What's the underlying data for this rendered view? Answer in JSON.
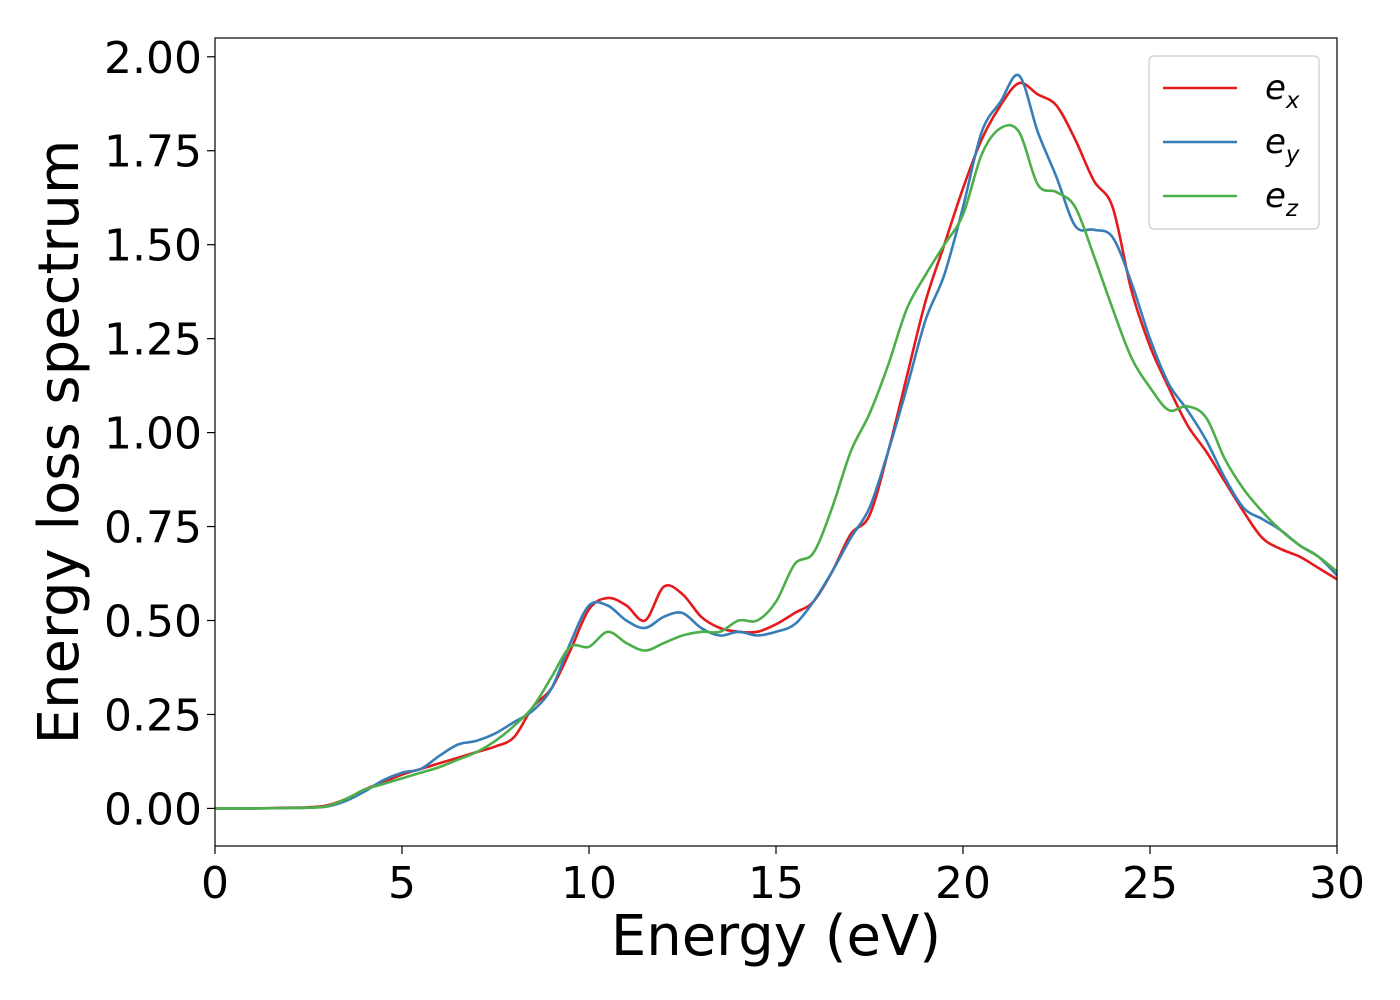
{
  "chart_data": {
    "type": "line",
    "title": "",
    "xlabel": "Energy (eV)",
    "ylabel": "Energy loss spectrum",
    "xlim": [
      0,
      30
    ],
    "ylim": [
      -0.1,
      2.05
    ],
    "x_ticks": [
      "0",
      "5",
      "10",
      "15",
      "20",
      "25",
      "30"
    ],
    "y_ticks": [
      "0.00",
      "0.25",
      "0.50",
      "0.75",
      "1.00",
      "1.25",
      "1.50",
      "1.75",
      "2.00"
    ],
    "grid": false,
    "legend_position": "top-right",
    "x": [
      0,
      1,
      2,
      2.5,
      3,
      3.5,
      4,
      4.5,
      5,
      5.5,
      6,
      6.5,
      7,
      7.5,
      8,
      8.5,
      9,
      9.5,
      10,
      10.5,
      11,
      11.5,
      12,
      12.5,
      13,
      13.5,
      14,
      14.5,
      15,
      15.5,
      16,
      16.5,
      17,
      17.5,
      18,
      18.5,
      19,
      19.5,
      20,
      20.5,
      21,
      21.5,
      22,
      22.5,
      23,
      23.5,
      24,
      24.5,
      25,
      25.5,
      26,
      26.5,
      27,
      27.5,
      28,
      28.5,
      29,
      29.5,
      30
    ],
    "series": [
      {
        "name": "e",
        "subscript": "x",
        "color": "#e41a1c",
        "values": [
          0,
          0,
          0.002,
          0.003,
          0.008,
          0.025,
          0.05,
          0.07,
          0.09,
          0.105,
          0.12,
          0.135,
          0.15,
          0.165,
          0.19,
          0.27,
          0.32,
          0.42,
          0.53,
          0.56,
          0.54,
          0.5,
          0.59,
          0.57,
          0.51,
          0.48,
          0.47,
          0.47,
          0.49,
          0.52,
          0.55,
          0.63,
          0.73,
          0.78,
          0.95,
          1.15,
          1.35,
          1.5,
          1.65,
          1.78,
          1.87,
          1.93,
          1.9,
          1.87,
          1.78,
          1.67,
          1.6,
          1.38,
          1.23,
          1.12,
          1.02,
          0.95,
          0.87,
          0.79,
          0.72,
          0.69,
          0.67,
          0.64,
          0.61
        ]
      },
      {
        "name": "e",
        "subscript": "y",
        "color": "#377eb8",
        "values": [
          0,
          0,
          0.001,
          0.002,
          0.005,
          0.02,
          0.045,
          0.075,
          0.095,
          0.105,
          0.14,
          0.17,
          0.18,
          0.2,
          0.23,
          0.26,
          0.32,
          0.44,
          0.54,
          0.54,
          0.5,
          0.48,
          0.51,
          0.52,
          0.48,
          0.46,
          0.47,
          0.46,
          0.47,
          0.49,
          0.55,
          0.63,
          0.72,
          0.8,
          0.95,
          1.12,
          1.3,
          1.42,
          1.6,
          1.8,
          1.88,
          1.95,
          1.8,
          1.68,
          1.55,
          1.54,
          1.52,
          1.4,
          1.25,
          1.13,
          1.06,
          0.98,
          0.88,
          0.8,
          0.77,
          0.74,
          0.7,
          0.67,
          0.62
        ]
      },
      {
        "name": "e",
        "subscript": "z",
        "color": "#4daf4a",
        "values": [
          0,
          0,
          0.001,
          0.002,
          0.006,
          0.025,
          0.05,
          0.065,
          0.08,
          0.095,
          0.11,
          0.13,
          0.15,
          0.18,
          0.22,
          0.27,
          0.35,
          0.43,
          0.43,
          0.47,
          0.44,
          0.42,
          0.44,
          0.46,
          0.47,
          0.47,
          0.5,
          0.5,
          0.55,
          0.65,
          0.68,
          0.8,
          0.95,
          1.05,
          1.18,
          1.33,
          1.42,
          1.5,
          1.58,
          1.74,
          1.81,
          1.8,
          1.66,
          1.64,
          1.6,
          1.47,
          1.33,
          1.2,
          1.12,
          1.06,
          1.07,
          1.04,
          0.93,
          0.85,
          0.79,
          0.74,
          0.7,
          0.67,
          0.63
        ]
      }
    ]
  }
}
